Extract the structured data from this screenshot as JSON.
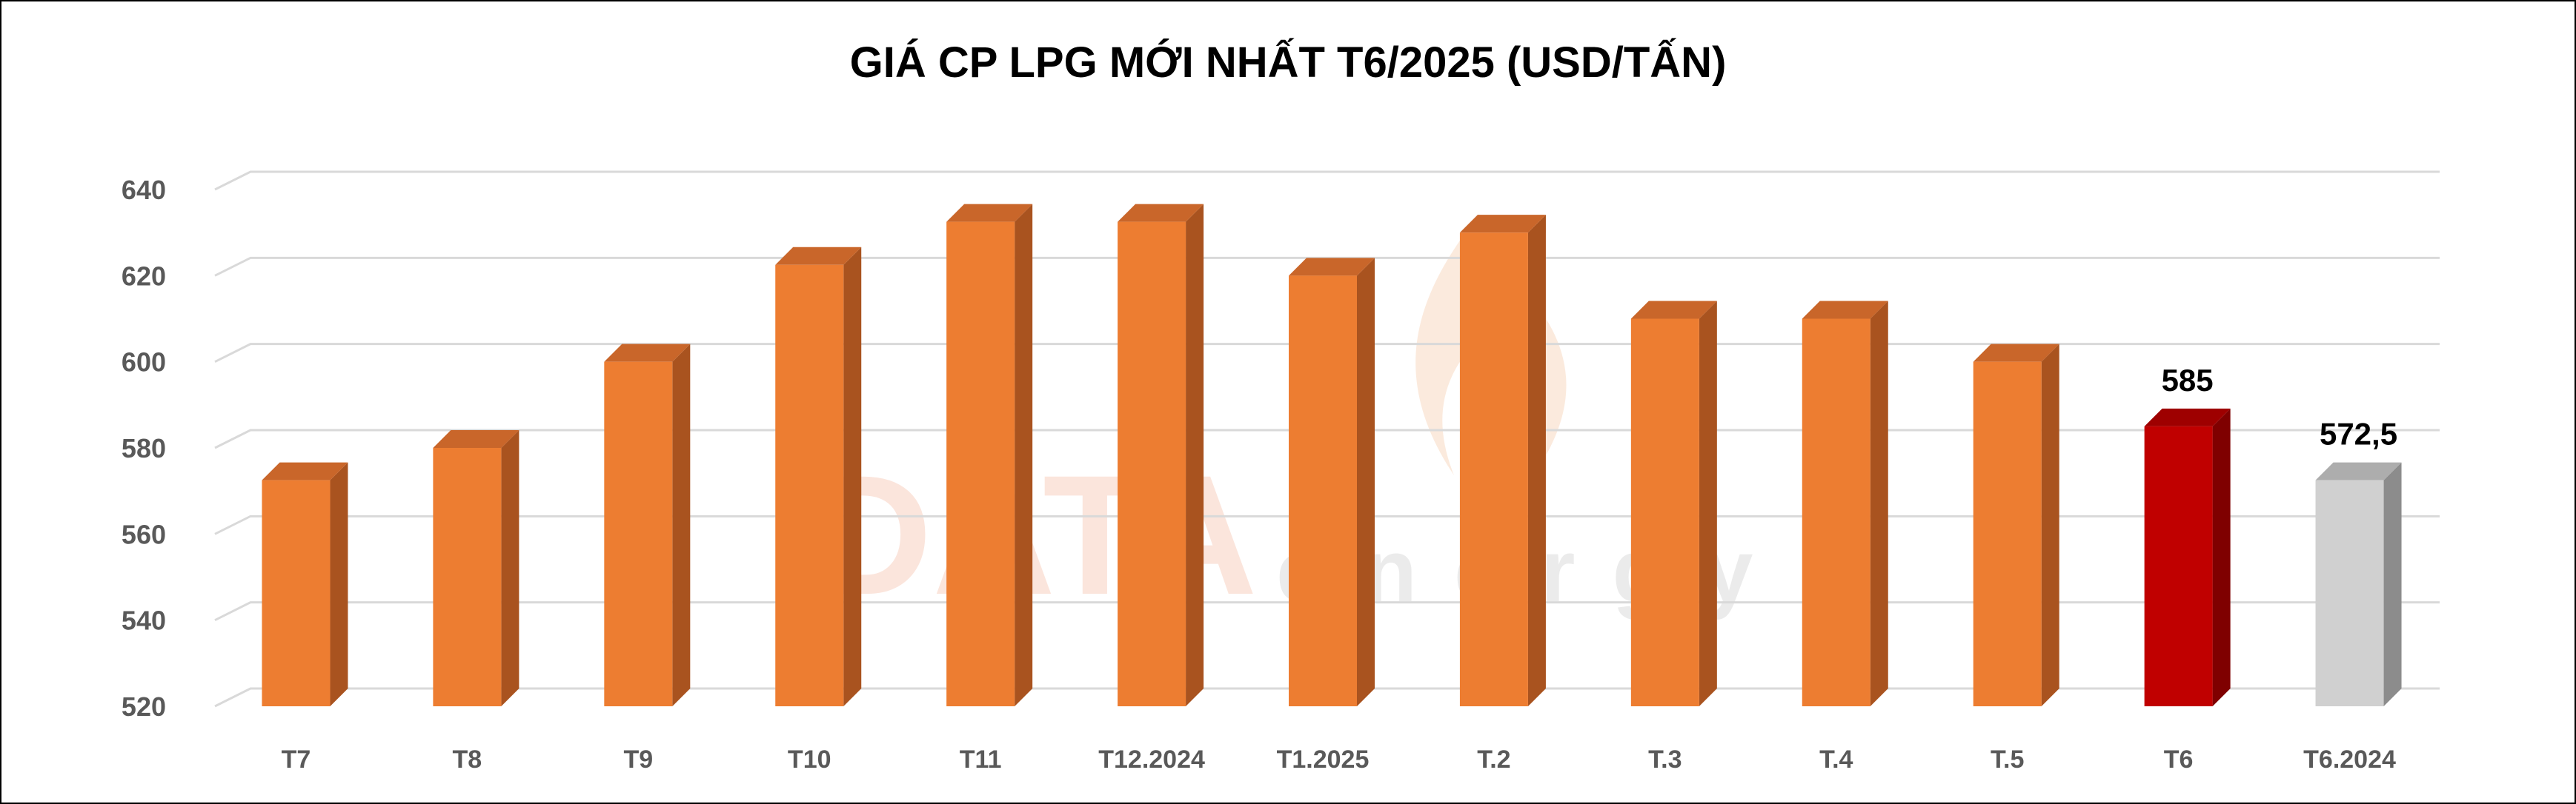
{
  "chart_data": {
    "type": "bar",
    "title": "GIÁ CP LPG MỚI NHẤT T6/2025 (USD/TẤN)",
    "categories": [
      "T7",
      "T8",
      "T9",
      "T10",
      "T11",
      "T12.2024",
      "T1.2025",
      "T.2",
      "T.3",
      "T.4",
      "T.5",
      "T6",
      "T6.2024"
    ],
    "series": [
      {
        "values": [
          572.5,
          580,
          600,
          622.5,
          632.5,
          632.5,
          620,
          630,
          610,
          610,
          600,
          585,
          572.5
        ]
      }
    ],
    "data_labels": [
      {
        "category": "T6",
        "text": "585"
      },
      {
        "category": "T6.2024",
        "text": "572,5"
      }
    ],
    "ylim": [
      520,
      640
    ],
    "yticks": [
      "520",
      "540",
      "560",
      "580",
      "600",
      "620",
      "640"
    ],
    "ytick_values": [
      520,
      540,
      560,
      580,
      600,
      620,
      640
    ],
    "grid": true,
    "colors": {
      "default_bar": "#ED7D31",
      "default_side": "#A9531F",
      "default_top": "#C9662A",
      "highlight_bar": "#C00000",
      "highlight_side": "#7F0000",
      "highlight_top": "#9E0000",
      "compare_bar": "#D0D0D0",
      "compare_side": "#8C8C8C",
      "compare_top": "#ADADAD",
      "gridline": "#D9D9D9",
      "tick_text": "#595959",
      "title_text": "#000000"
    },
    "highlight": {
      "T6": "highlight",
      "T6.2024": "compare"
    },
    "watermark": {
      "main": "DATA",
      "sub": "energy"
    }
  }
}
